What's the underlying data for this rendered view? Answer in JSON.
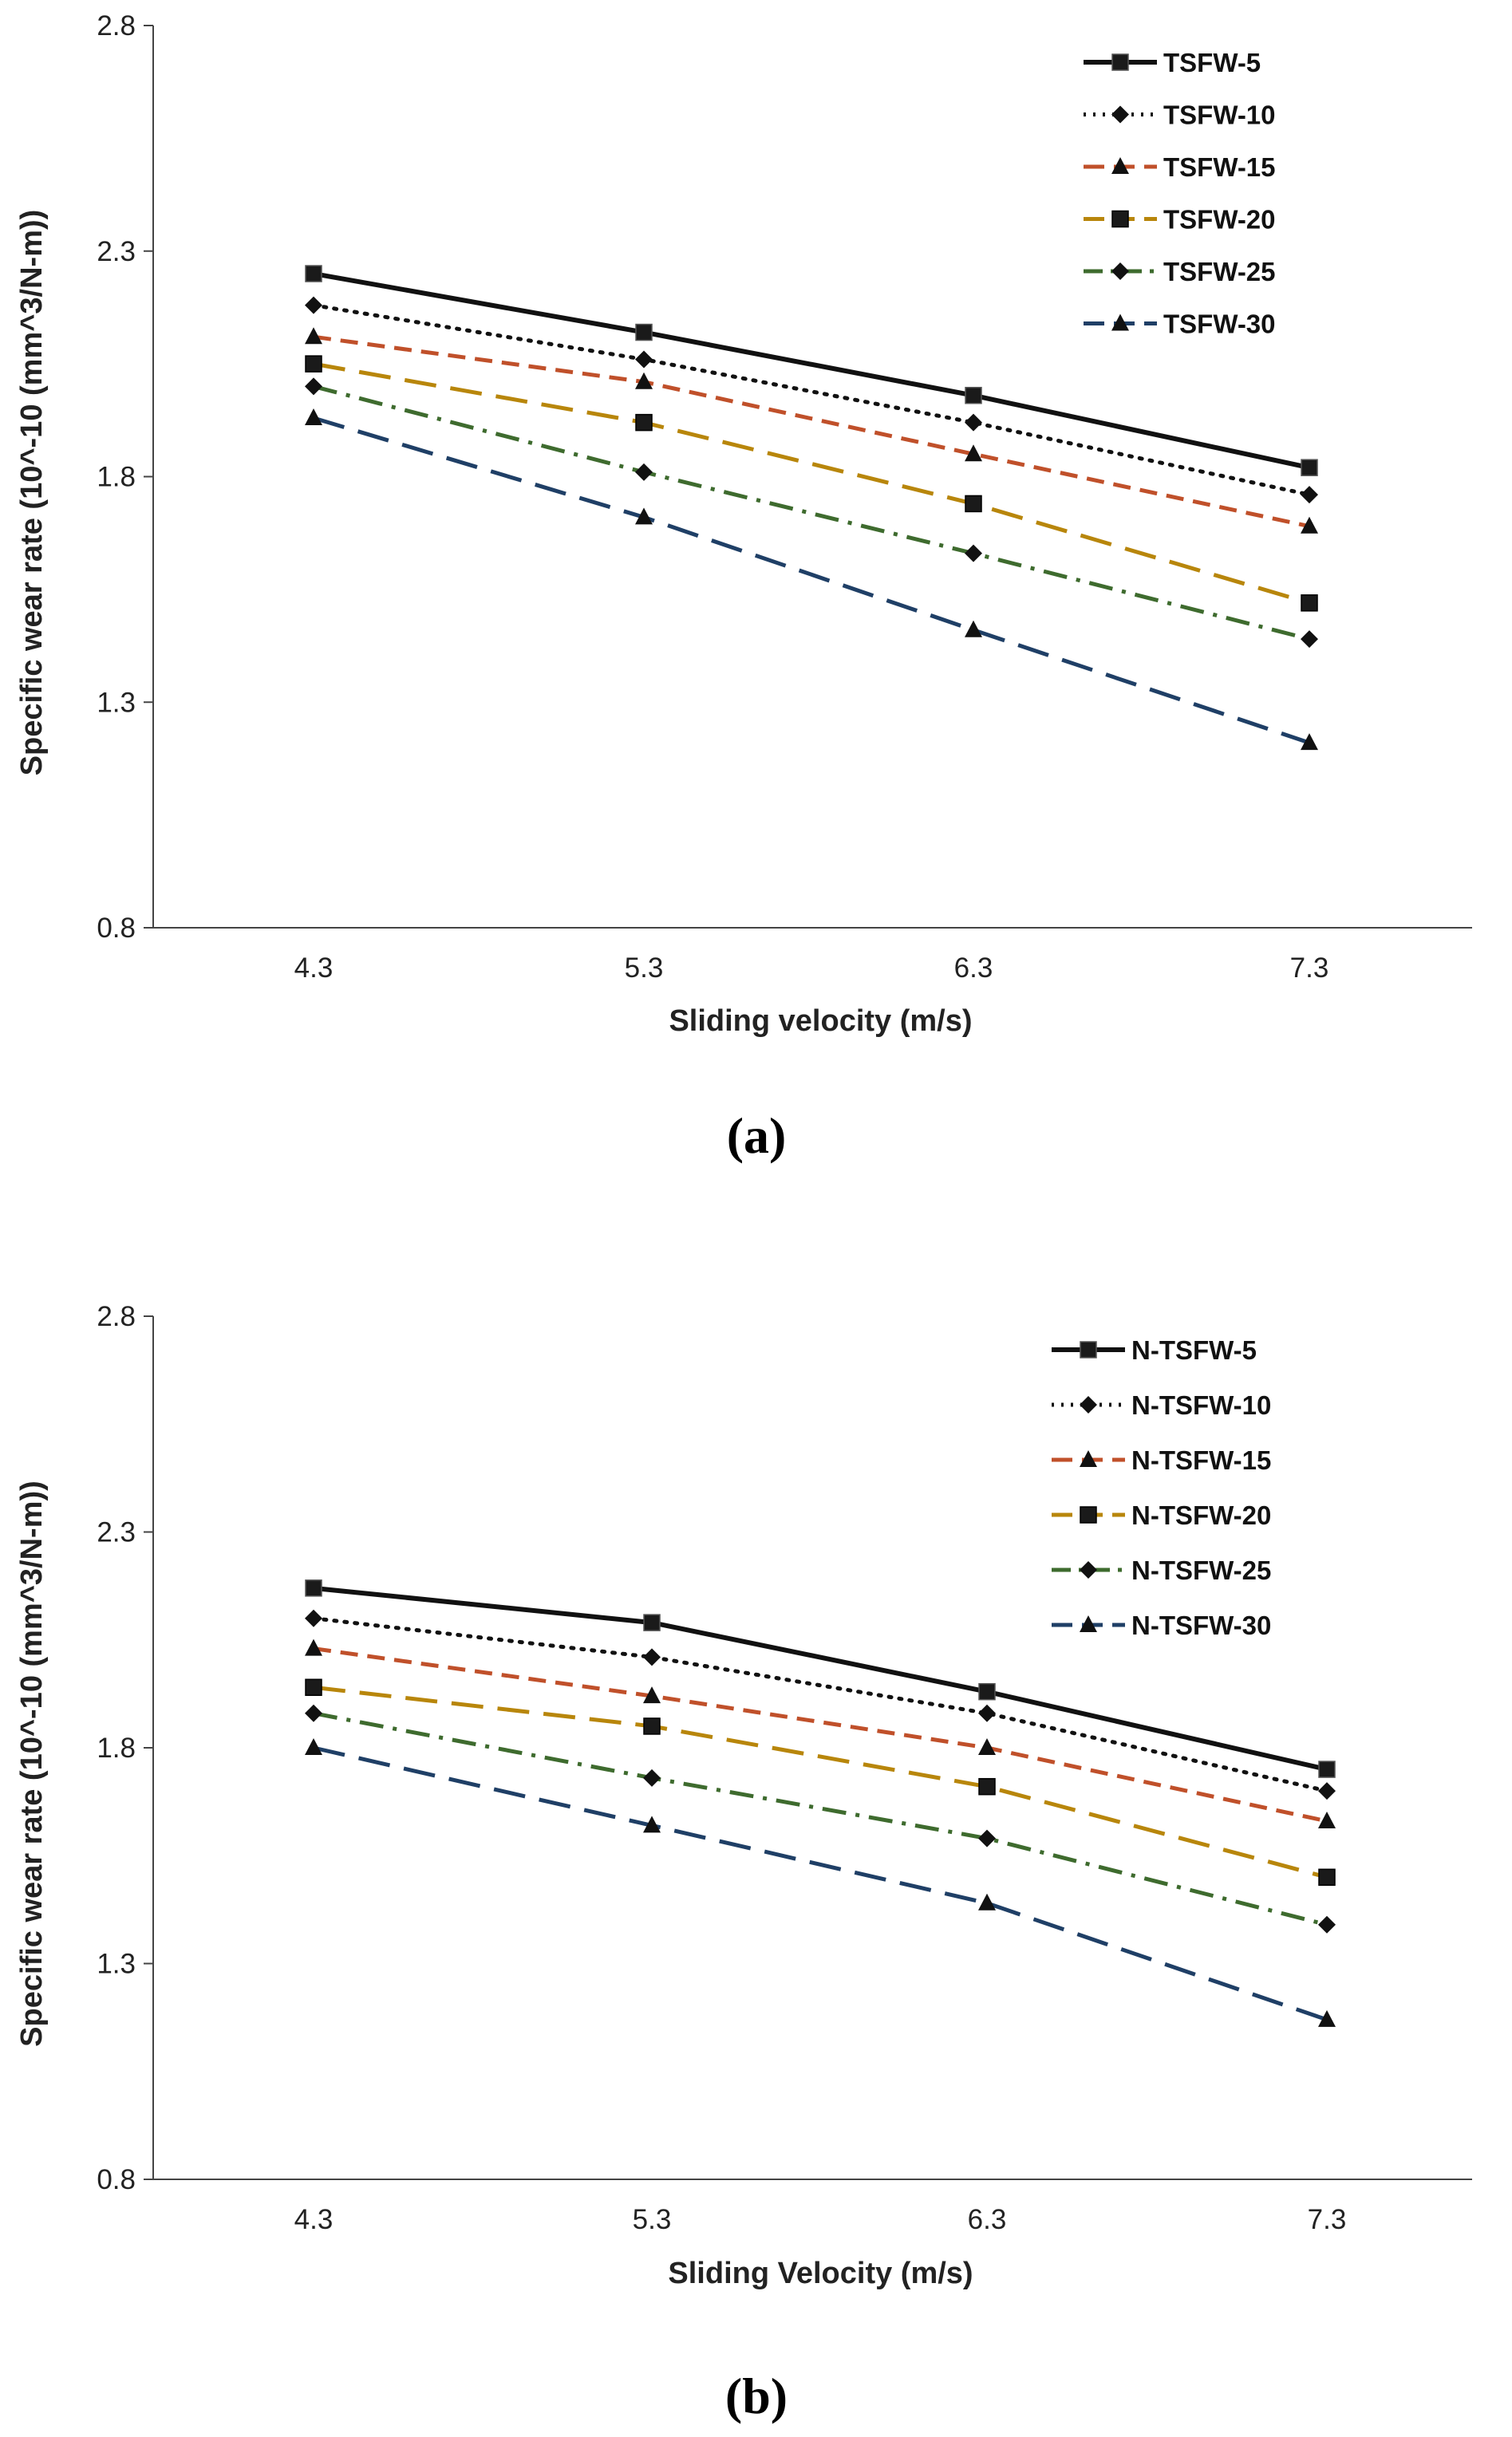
{
  "chart_data": [
    {
      "type": "line",
      "panel_label": "(a)",
      "title": "",
      "xlabel": "Sliding velocity (m/s)",
      "ylabel": "Specific wear rate (10^-10 (mm^3/N-m))",
      "categories": [
        "4.3",
        "5.3",
        "6.3",
        "7.3"
      ],
      "yticks": [
        "0.8",
        "1.3",
        "1.8",
        "2.3",
        "2.8"
      ],
      "ylim": [
        0.8,
        2.8
      ],
      "grid": false,
      "legend_position": "top-right",
      "series": [
        {
          "name": "TSFW-5",
          "values": [
            2.25,
            2.12,
            1.98,
            1.82
          ],
          "color": "#111111",
          "dash": "solid",
          "marker": "square"
        },
        {
          "name": "TSFW-10",
          "values": [
            2.18,
            2.06,
            1.92,
            1.76
          ],
          "color": "#111111",
          "dash": "dot",
          "marker": "diamond"
        },
        {
          "name": "TSFW-15",
          "values": [
            2.11,
            2.01,
            1.85,
            1.69
          ],
          "color": "#C0502A",
          "dash": "dash",
          "marker": "triangle"
        },
        {
          "name": "TSFW-20",
          "values": [
            2.05,
            1.92,
            1.74,
            1.52
          ],
          "color": "#B8860B",
          "dash": "longdash",
          "marker": "square"
        },
        {
          "name": "TSFW-25",
          "values": [
            2.0,
            1.81,
            1.63,
            1.44
          ],
          "color": "#3E6B2E",
          "dash": "dashdot",
          "marker": "diamond"
        },
        {
          "name": "TSFW-30",
          "values": [
            1.93,
            1.71,
            1.46,
            1.21
          ],
          "color": "#1F3F66",
          "dash": "longdash",
          "marker": "triangle"
        }
      ]
    },
    {
      "type": "line",
      "panel_label": "(b)",
      "title": "",
      "xlabel": "Sliding Velocity (m/s)",
      "ylabel": "Specific wear rate (10^-10 (mm^3/N-m))",
      "categories": [
        "4.3",
        "5.3",
        "6.3",
        "7.3"
      ],
      "yticks": [
        "0.8",
        "1.3",
        "1.8",
        "2.3",
        "2.8"
      ],
      "ylim": [
        0.8,
        2.8
      ],
      "grid": false,
      "legend_position": "top-right",
      "series": [
        {
          "name": "N-TSFW-5",
          "values": [
            2.17,
            2.09,
            1.93,
            1.75
          ],
          "color": "#111111",
          "dash": "solid",
          "marker": "square"
        },
        {
          "name": "N-TSFW-10",
          "values": [
            2.1,
            2.01,
            1.88,
            1.7
          ],
          "color": "#111111",
          "dash": "dot",
          "marker": "diamond"
        },
        {
          "name": "N-TSFW-15",
          "values": [
            2.03,
            1.92,
            1.8,
            1.63
          ],
          "color": "#C0502A",
          "dash": "dash",
          "marker": "triangle"
        },
        {
          "name": "N-TSFW-20",
          "values": [
            1.94,
            1.85,
            1.71,
            1.5
          ],
          "color": "#B8860B",
          "dash": "longdash",
          "marker": "square"
        },
        {
          "name": "N-TSFW-25",
          "values": [
            1.88,
            1.73,
            1.59,
            1.39
          ],
          "color": "#3E6B2E",
          "dash": "dashdot",
          "marker": "diamond"
        },
        {
          "name": "N-TSFW-30",
          "values": [
            1.8,
            1.62,
            1.44,
            1.17
          ],
          "color": "#1F3F66",
          "dash": "longdash",
          "marker": "triangle"
        }
      ]
    }
  ]
}
